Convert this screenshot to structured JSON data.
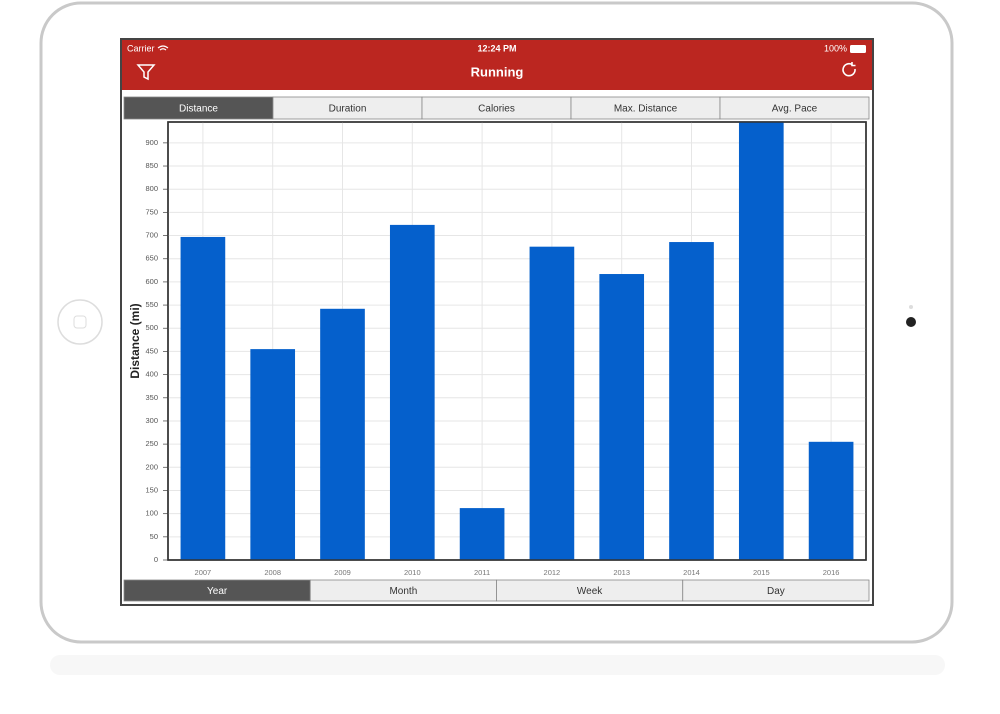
{
  "status_bar": {
    "carrier": "Carrier",
    "time": "12:24 PM",
    "battery": "100%"
  },
  "nav": {
    "title": "Running"
  },
  "metric_tabs": [
    "Distance",
    "Duration",
    "Calories",
    "Max. Distance",
    "Avg. Pace"
  ],
  "selected_metric": 0,
  "chart_data": {
    "type": "bar",
    "y_label": "Distance (mi)",
    "categories": [
      "2007",
      "2008",
      "2009",
      "2010",
      "2011",
      "2012",
      "2013",
      "2014",
      "2015",
      "2016"
    ],
    "values": [
      697,
      455,
      542,
      723,
      112,
      676,
      617,
      686,
      945,
      255
    ],
    "color": "#0560cc",
    "ylim": [
      0,
      945
    ],
    "yticks": [
      0,
      50,
      100,
      150,
      200,
      250,
      300,
      350,
      400,
      450,
      500,
      550,
      600,
      650,
      700,
      750,
      800,
      850,
      900
    ],
    "grid": true
  },
  "period_tabs": [
    "Year",
    "Month",
    "Week",
    "Day"
  ],
  "selected_period": 0
}
